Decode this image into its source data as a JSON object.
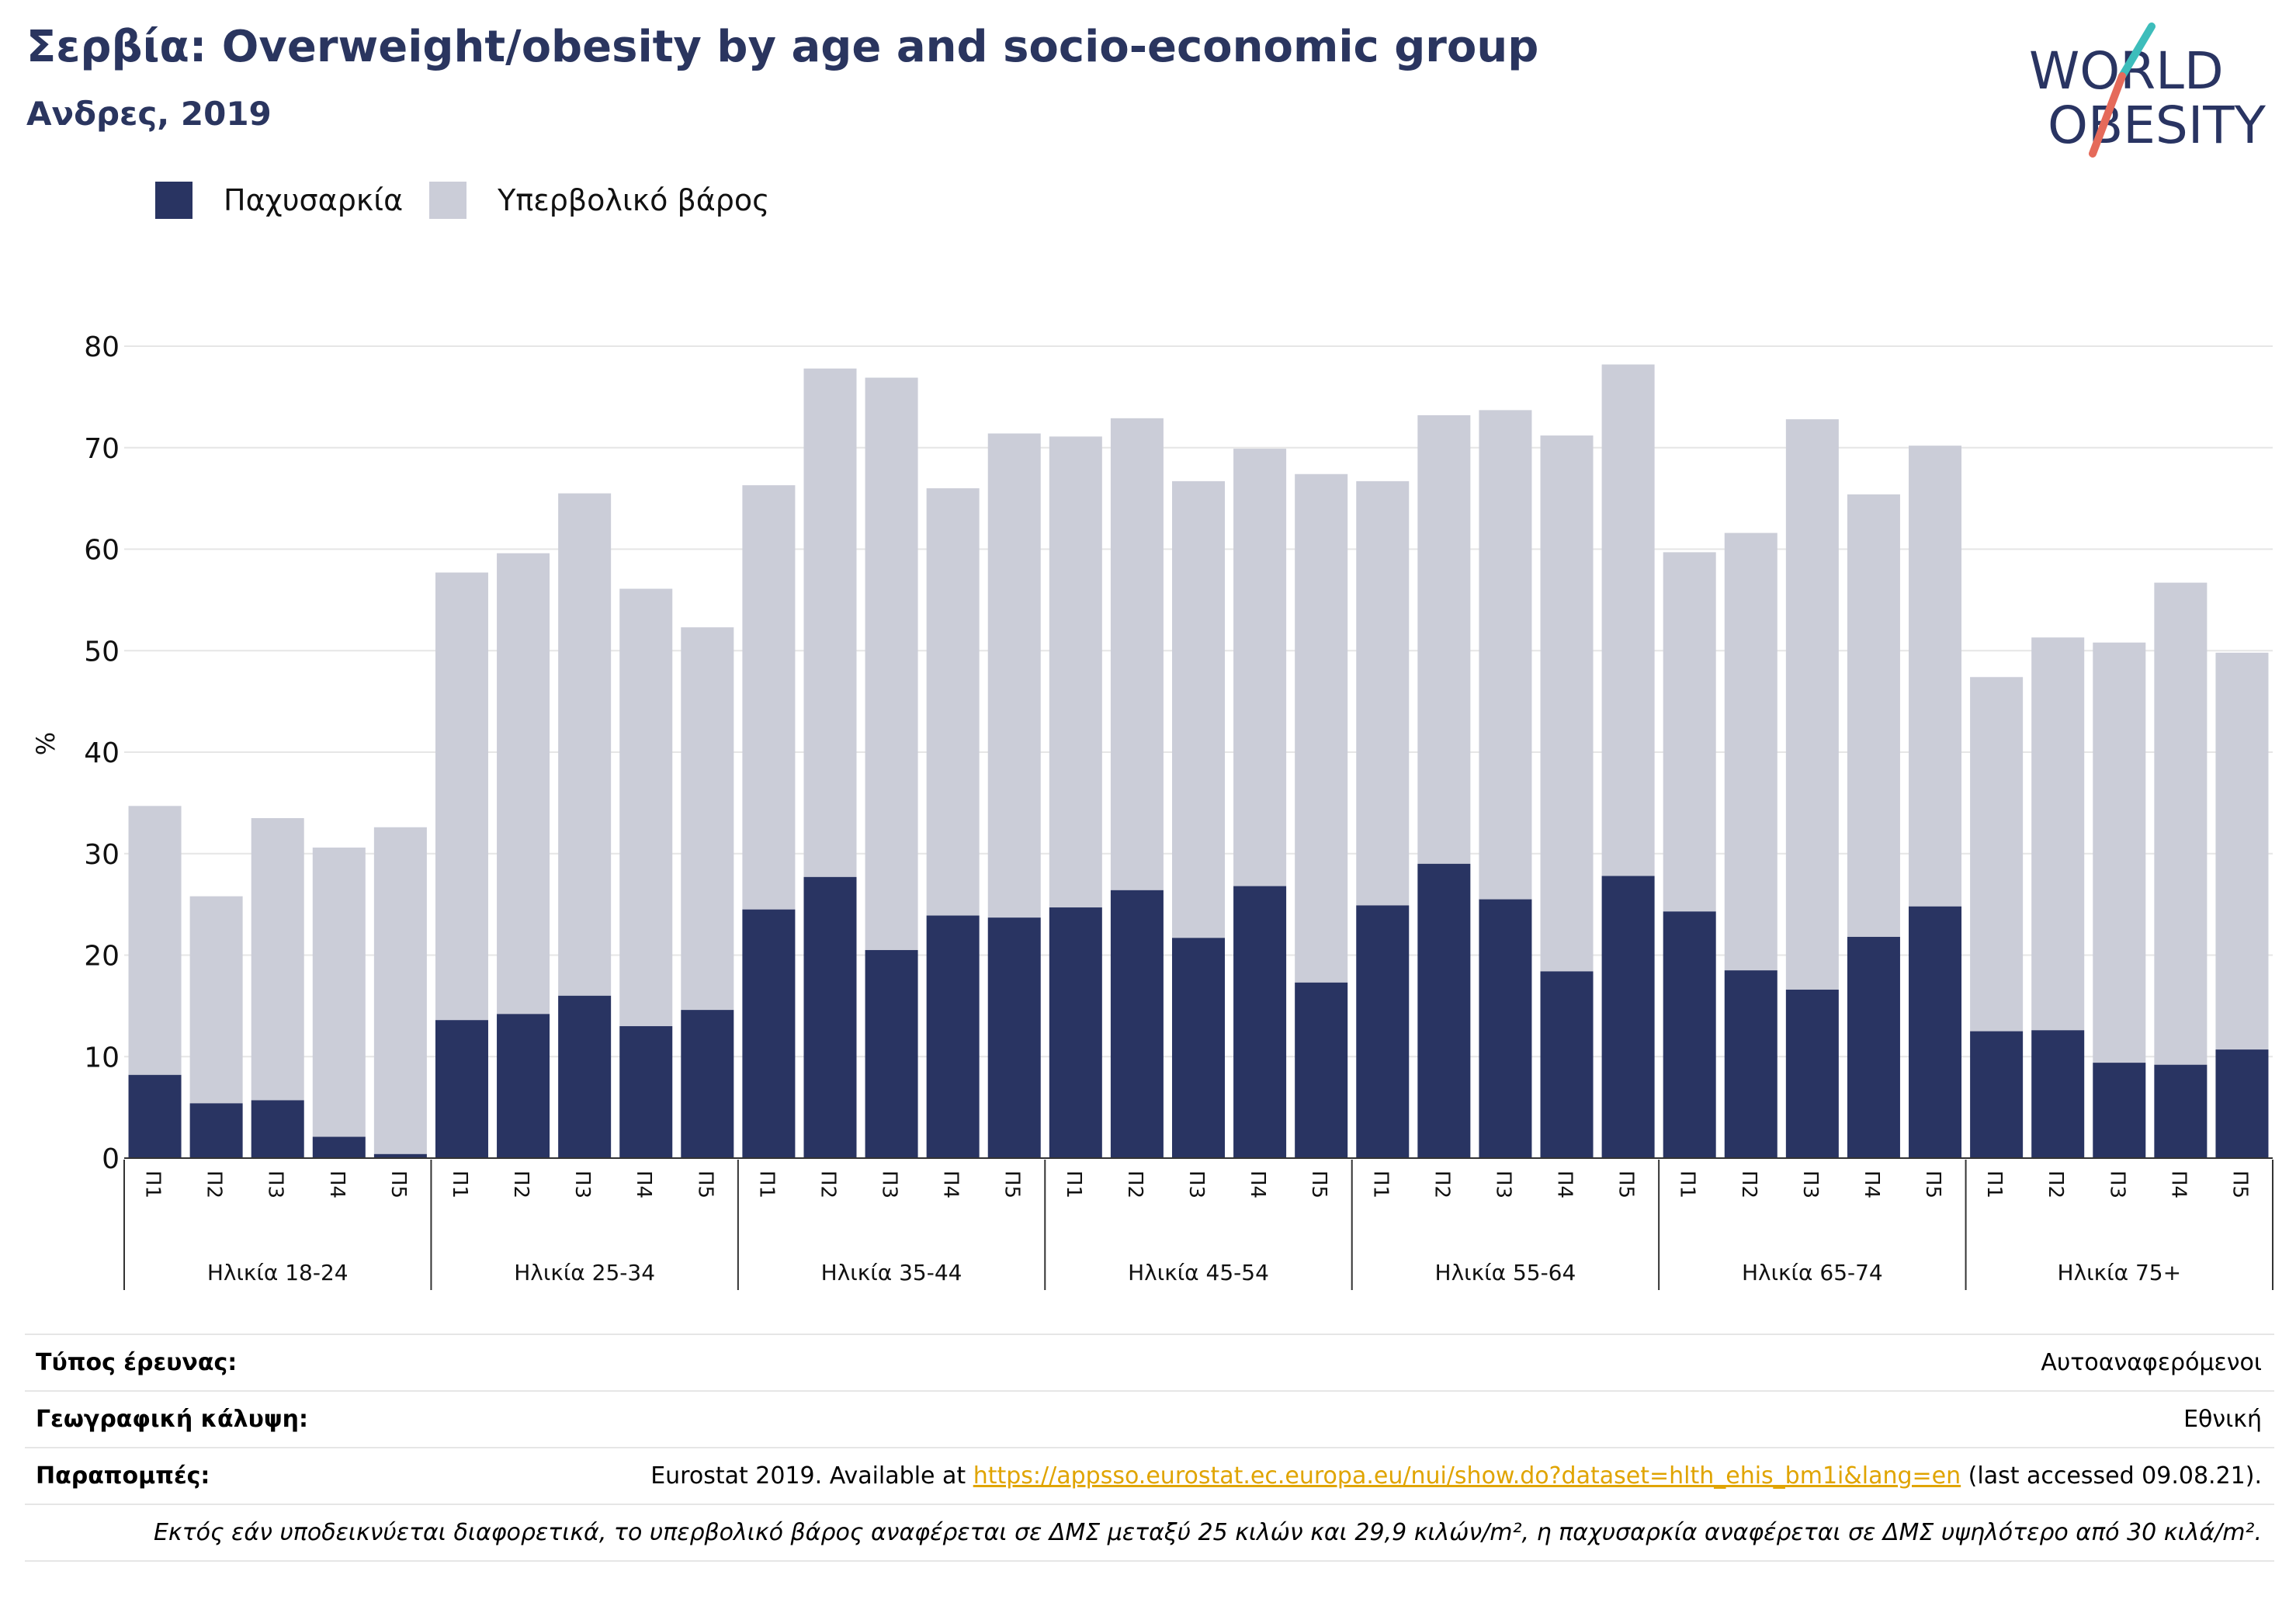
{
  "header": {
    "title": "Σερβία: Overweight/obesity by age and socio-economic group",
    "subtitle": "Ανδρες, 2019"
  },
  "logo": {
    "line1": "WORLD",
    "line2": "OBESITY",
    "accent_teal": "#3dbdbb",
    "accent_red": "#e56a5a"
  },
  "colors": {
    "obesity": "#293462",
    "overweight": "#cbcdd8",
    "grid": "#e6e6e6",
    "axis": "#333333"
  },
  "chart_data": {
    "type": "bar",
    "stacked": true,
    "ylabel": "%",
    "ylim": [
      0,
      80
    ],
    "yticks": [
      0,
      10,
      20,
      30,
      40,
      50,
      60,
      70,
      80
    ],
    "legend_position": "top-left",
    "grid": true,
    "groups": [
      "Ηλικία 18-24",
      "Ηλικία 25-34",
      "Ηλικία 35-44",
      "Ηλικία 45-54",
      "Ηλικία 55-64",
      "Ηλικία 65-74",
      "Ηλικία 75+"
    ],
    "categories": [
      "Π1",
      "Π2",
      "Π3",
      "Π4",
      "Π5"
    ],
    "series": [
      {
        "name": "Παχυσαρκία",
        "color": "#293462",
        "values": [
          [
            8.2,
            5.4,
            5.7,
            2.1,
            0.4
          ],
          [
            13.6,
            14.2,
            16.0,
            13.0,
            14.6
          ],
          [
            24.5,
            27.7,
            20.5,
            23.9,
            23.7
          ],
          [
            24.7,
            26.4,
            21.7,
            26.8,
            17.3
          ],
          [
            24.9,
            29.0,
            25.5,
            18.4,
            27.8
          ],
          [
            24.3,
            18.5,
            16.6,
            21.8,
            24.8
          ],
          [
            12.5,
            12.6,
            9.4,
            9.2,
            10.7
          ]
        ]
      },
      {
        "name": "Υπερβολικό βάρος",
        "color": "#cbcdd8",
        "values": [
          [
            26.5,
            20.4,
            27.8,
            28.5,
            32.2
          ],
          [
            44.1,
            45.4,
            49.5,
            43.1,
            37.7
          ],
          [
            41.8,
            50.1,
            56.4,
            42.1,
            47.7
          ],
          [
            46.4,
            46.5,
            45.0,
            43.1,
            50.1
          ],
          [
            41.8,
            44.2,
            48.2,
            52.8,
            50.4
          ],
          [
            35.4,
            43.1,
            56.2,
            43.6,
            45.4
          ],
          [
            34.9,
            38.7,
            41.4,
            47.5,
            39.1
          ]
        ]
      }
    ]
  },
  "info": {
    "survey_type_label": "Τύπος έρευνας:",
    "survey_type_value": "Αυτοαναφερόμενοι",
    "coverage_label": "Γεωγραφική κάλυψη:",
    "coverage_value": "Εθνική",
    "refs_label": "Παραπομπές:",
    "refs_prefix": "Eurostat 2019. Available at ",
    "refs_link": "https://appsso.eurostat.ec.europa.eu/nui/show.do?dataset=hlth_ehis_bm1i&lang=en",
    "refs_suffix": " (last accessed 09.08.21).",
    "note": "Εκτός εάν υποδεικνύεται διαφορετικά, το υπερβολικό βάρος αναφέρεται σε ΔΜΣ μεταξύ 25 κιλών και 29,9 κιλών/m², η παχυσαρκία αναφέρεται σε ΔΜΣ υψηλότερο από 30 κιλά/m²."
  }
}
